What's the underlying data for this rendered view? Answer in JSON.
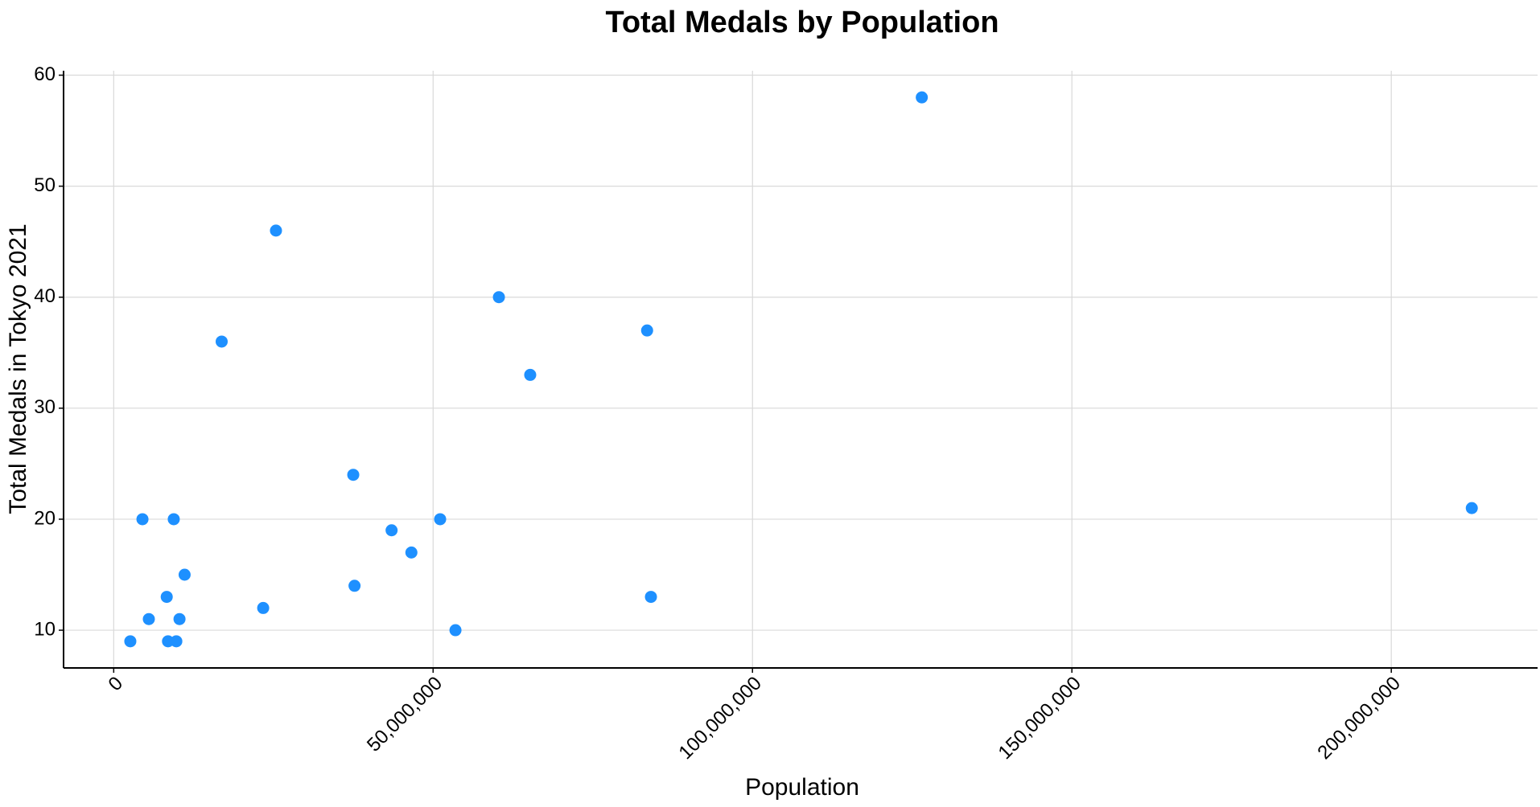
{
  "chart_data": {
    "type": "scatter",
    "title": "Total Medals by Population",
    "x_label": "Population",
    "y_label": "Total Medals in Tokyo 2021",
    "color": "#1e90ff",
    "grid": true,
    "xlim": [
      -7850000,
      222900000
    ],
    "ylim": [
      6.6,
      60.4
    ],
    "xticks": [
      0,
      {
        "value": 50000000,
        "label": "50,000,000"
      },
      {
        "value": 100000000,
        "label": "100,000,000"
      },
      {
        "value": 150000000,
        "label": "150,000,000"
      },
      {
        "value": 200000000,
        "label": "200,000,000"
      }
    ],
    "yticks": [
      10,
      20,
      30,
      40,
      50,
      60
    ],
    "x": [
      2600000,
      4500000,
      5500000,
      8300000,
      8500000,
      9400000,
      9800000,
      10300000,
      11100000,
      16900000,
      23400000,
      25400000,
      37500000,
      37700000,
      43500000,
      46600000,
      51100000,
      53500000,
      60300000,
      65200000,
      83500000,
      84100000,
      126500000,
      212600000
    ],
    "values": [
      9,
      20,
      11,
      13,
      9,
      20,
      9,
      11,
      15,
      36,
      12,
      46,
      24,
      14,
      19,
      17,
      20,
      10,
      40,
      33,
      37,
      13,
      58,
      21
    ]
  }
}
